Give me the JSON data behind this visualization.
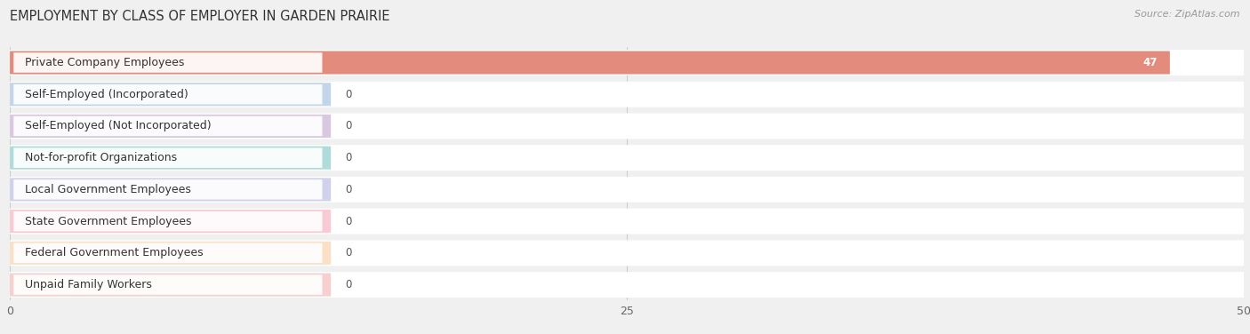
{
  "title": "EMPLOYMENT BY CLASS OF EMPLOYER IN GARDEN PRAIRIE",
  "source": "Source: ZipAtlas.com",
  "categories": [
    "Private Company Employees",
    "Self-Employed (Incorporated)",
    "Self-Employed (Not Incorporated)",
    "Not-for-profit Organizations",
    "Local Government Employees",
    "State Government Employees",
    "Federal Government Employees",
    "Unpaid Family Workers"
  ],
  "values": [
    47,
    0,
    0,
    0,
    0,
    0,
    0,
    0
  ],
  "bar_colors": [
    "#e07b6a",
    "#93b4d8",
    "#b89bc8",
    "#6dbfb8",
    "#a8aed8",
    "#f4a0b0",
    "#f5c899",
    "#f0a8a8"
  ],
  "xlim": [
    0,
    50
  ],
  "xticks": [
    0,
    25,
    50
  ],
  "background_color": "#f0f0f0",
  "row_bg_color": "#ffffff",
  "title_fontsize": 10.5,
  "label_fontsize": 9,
  "value_fontsize": 8.5,
  "source_fontsize": 8,
  "zero_bar_width": 13.0
}
